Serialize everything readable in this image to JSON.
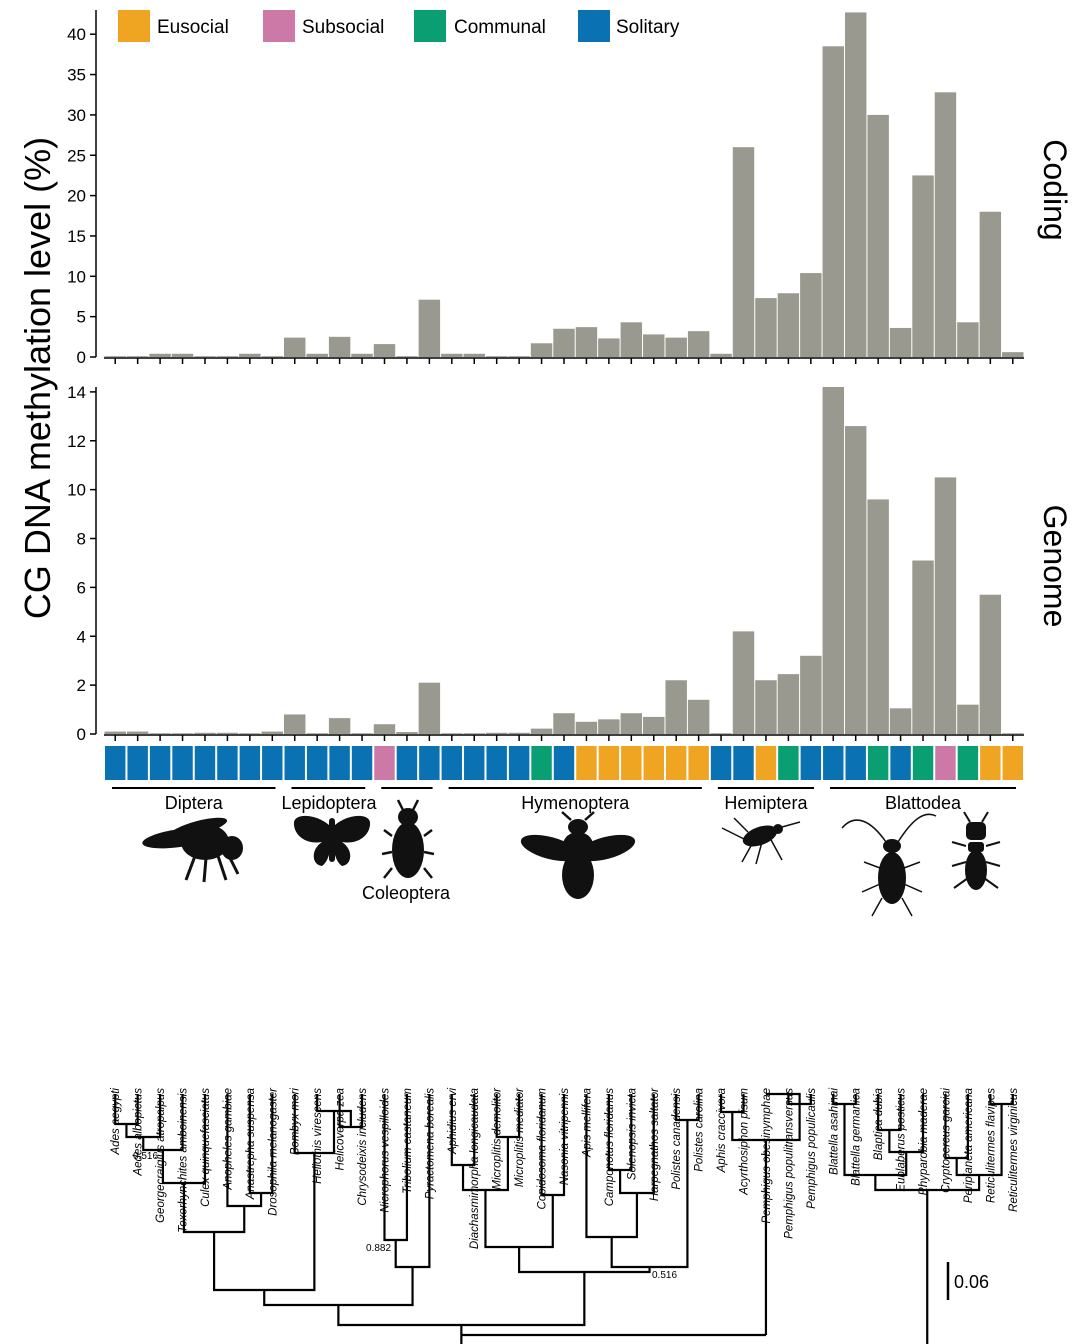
{
  "colors": {
    "bar": "#999990",
    "Eusocial": "#EFA422",
    "Subsocial": "#CC79A7",
    "Communal": "#0A9E73",
    "Solitary": "#0A72B2"
  },
  "legend": [
    {
      "label": "Eusocial",
      "key": "Eusocial"
    },
    {
      "label": "Subsocial",
      "key": "Subsocial"
    },
    {
      "label": "Communal",
      "key": "Communal"
    },
    {
      "label": "Solitary",
      "key": "Solitary"
    }
  ],
  "chart_data": [
    {
      "type": "bar",
      "panel_label": "Coding",
      "ylabel": "CG DNA methylation level (%)",
      "ylim": [
        0,
        43
      ],
      "yticks": [
        0,
        5,
        10,
        15,
        20,
        25,
        30,
        35,
        40
      ],
      "categories": [
        "Ades aegypti",
        "Aedes albopictus",
        "Georgecraigius atropalpus",
        "Toxorhynchites amboinensis",
        "Culex quinquefasciatus",
        "Anopheles gambiae",
        "Anastrepha suspensa",
        "Drosophila melanogaster",
        "Bombyx mori",
        "Heliothis virescens",
        "Helicoverpa zea",
        "Chrysodeixis includens",
        "Nicrophorus vespilloides",
        "Tribolium castaneum",
        "Pyractomena borealis",
        "Aphidius ervi",
        "Diachasmimorpha longicaudata",
        "Microplitis demolitor",
        "Microplitis mediator",
        "Copidosoma floridanum",
        "Nasonia vitripennis",
        "Apis mellifera",
        "Camponotus floridanus",
        "Solenopsis invicta",
        "Harpegnathos saltator",
        "Polistes canadensis",
        "Polistes carolina",
        "Aphis craccivora",
        "Acyrthosiphon pisum",
        "Pemphigus obesinymphae",
        "Pemphigus populitransversus",
        "Pemphigus populicaulis",
        "Blattella asahinai",
        "Blattella germanica",
        "Blaptica dubia",
        "Eublaberus posticus",
        "Rhyparobia maderae",
        "Cryptocercus garciai",
        "Periplaneta americana",
        "Reticulitermes flavipes",
        "Reticulitermes virginicus"
      ],
      "values": [
        0.1,
        0.1,
        0.4,
        0.4,
        0.1,
        0.1,
        0.4,
        0.1,
        2.4,
        0.4,
        2.5,
        0.4,
        1.6,
        0.1,
        7.1,
        0.4,
        0.4,
        0.1,
        0.1,
        1.7,
        3.5,
        3.7,
        2.3,
        4.3,
        2.8,
        2.4,
        3.2,
        0.4,
        26.0,
        7.3,
        7.9,
        10.4,
        38.5,
        42.7,
        30.0,
        3.6,
        22.5,
        32.8,
        4.3,
        18.0,
        0.6
      ]
    },
    {
      "type": "bar",
      "panel_label": "Genome",
      "ylim": [
        0,
        14.2
      ],
      "yticks": [
        0,
        2,
        4,
        6,
        8,
        10,
        12,
        14
      ],
      "categories": [
        "Ades aegypti",
        "Aedes albopictus",
        "Georgecraigius atropalpus",
        "Toxorhynchites amboinensis",
        "Culex quinquefasciatus",
        "Anopheles gambiae",
        "Anastrepha suspensa",
        "Drosophila melanogaster",
        "Bombyx mori",
        "Heliothis virescens",
        "Helicoverpa zea",
        "Chrysodeixis includens",
        "Nicrophorus vespilloides",
        "Tribolium castaneum",
        "Pyractomena borealis",
        "Aphidius ervi",
        "Diachasmimorpha longicaudata",
        "Microplitis demolitor",
        "Microplitis mediator",
        "Copidosoma floridanum",
        "Nasonia vitripennis",
        "Apis mellifera",
        "Camponotus floridanus",
        "Solenopsis invicta",
        "Harpegnathos saltator",
        "Polistes canadensis",
        "Polistes carolina",
        "Aphis craccivora",
        "Acyrthosiphon pisum",
        "Pemphigus obesinymphae",
        "Pemphigus populitransversus",
        "Pemphigus populicaulis",
        "Blattella asahinai",
        "Blattella germanica",
        "Blaptica dubia",
        "Eublaberus posticus",
        "Rhyparobia maderae",
        "Cryptocercus garciai",
        "Periplaneta americana",
        "Reticulitermes flavipes",
        "Reticulitermes virginicus"
      ],
      "values": [
        0.1,
        0.1,
        0.03,
        0.03,
        0.05,
        0.05,
        0.03,
        0.1,
        0.8,
        0.03,
        0.65,
        0.03,
        0.4,
        0.08,
        2.1,
        0.03,
        0.03,
        0.05,
        0.05,
        0.22,
        0.85,
        0.5,
        0.6,
        0.85,
        0.7,
        2.2,
        1.4,
        0.03,
        4.2,
        2.2,
        2.45,
        3.2,
        14.2,
        12.6,
        9.6,
        1.05,
        7.1,
        10.5,
        1.2,
        5.7,
        0.03
      ]
    }
  ],
  "social": [
    "Solitary",
    "Solitary",
    "Solitary",
    "Solitary",
    "Solitary",
    "Solitary",
    "Solitary",
    "Solitary",
    "Solitary",
    "Solitary",
    "Solitary",
    "Solitary",
    "Subsocial",
    "Solitary",
    "Solitary",
    "Solitary",
    "Solitary",
    "Solitary",
    "Solitary",
    "Communal",
    "Solitary",
    "Eusocial",
    "Eusocial",
    "Eusocial",
    "Eusocial",
    "Eusocial",
    "Eusocial",
    "Solitary",
    "Solitary",
    "Eusocial",
    "Communal",
    "Solitary",
    "Solitary",
    "Solitary",
    "Communal",
    "Solitary",
    "Communal",
    "Subsocial",
    "Communal",
    "Eusocial",
    "Eusocial"
  ],
  "orders": [
    {
      "name": "Diptera",
      "from": 0,
      "to": 7
    },
    {
      "name": "Lepidoptera",
      "from": 8,
      "to": 11
    },
    {
      "name": "Coleoptera",
      "from": 12,
      "to": 14
    },
    {
      "name": "Hymenoptera",
      "from": 15,
      "to": 26
    },
    {
      "name": "Hemiptera",
      "from": 27,
      "to": 31
    },
    {
      "name": "Blattodea",
      "from": 32,
      "to": 40
    }
  ],
  "silhouettes": [
    "fly-icon",
    "moth-icon",
    "beetle-icon",
    "bee-icon",
    "aphid-icon",
    "cockroach-icon",
    "termite-icon"
  ],
  "tree": {
    "bootstrap": [
      "0.516",
      "0.882",
      "0.516"
    ],
    "scale_label": "0.06"
  }
}
